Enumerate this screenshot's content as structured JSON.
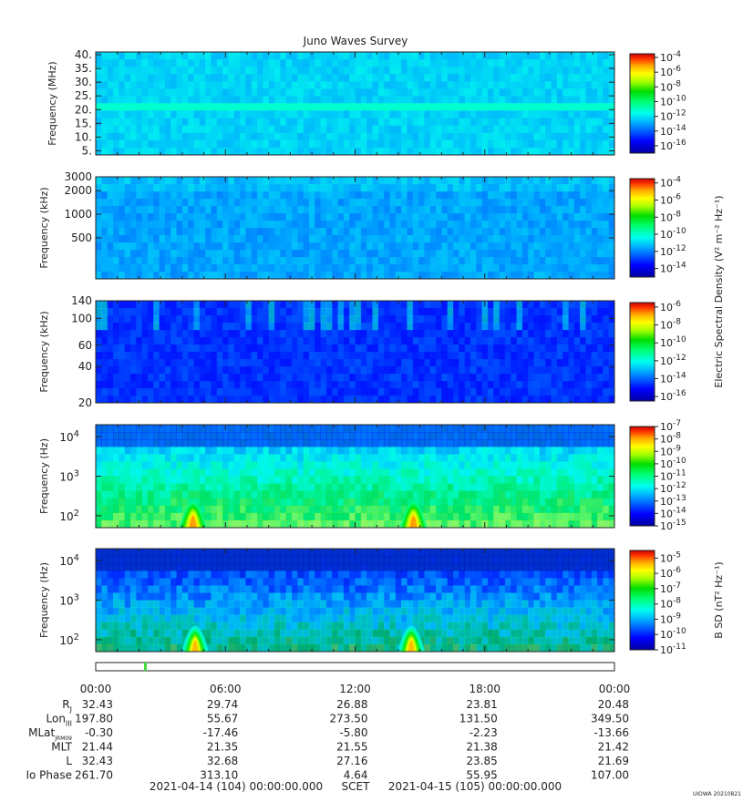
{
  "title": "Juno Waves Survey",
  "credit": "UIOWA 20210821",
  "colors": {
    "background": "#ffffff",
    "text": "#222222",
    "axis": "#222222",
    "marker": "#44dd44"
  },
  "chart_data": [
    {
      "type": "heatmap",
      "name": "panel-hfr-high",
      "ylabel": "Frequency (MHz)",
      "y_ticks": [
        "40.",
        "35.",
        "30.",
        "25.",
        "20.",
        "15.",
        "10.",
        "5."
      ],
      "yscale": "linear",
      "ylim": [
        3.5,
        41
      ],
      "colorbar_ticks": [
        {
          "base": "10",
          "exp": "-4"
        },
        {
          "base": "10",
          "exp": "-6"
        },
        {
          "base": "10",
          "exp": "-8"
        },
        {
          "base": "10",
          "exp": "-10"
        },
        {
          "base": "10",
          "exp": "-12"
        },
        {
          "base": "10",
          "exp": "-14"
        },
        {
          "base": "10",
          "exp": "-16"
        }
      ],
      "colorbar_range_log10": [
        -17,
        -3.5
      ],
      "colorbar_label": "",
      "features": [
        {
          "kind": "band",
          "y": 21,
          "level": -11.2,
          "note": "narrow green band near 21 MHz"
        }
      ],
      "base_level": -12.3
    },
    {
      "type": "heatmap",
      "name": "panel-hfr-low",
      "ylabel": "Frequency (kHz)",
      "y_ticks": [
        "3000",
        "2000",
        "1000",
        "500"
      ],
      "yscale": "log",
      "ylim": [
        150,
        3000
      ],
      "colorbar_ticks": [
        {
          "base": "10",
          "exp": "-4"
        },
        {
          "base": "10",
          "exp": "-6"
        },
        {
          "base": "10",
          "exp": "-8"
        },
        {
          "base": "10",
          "exp": "-10"
        },
        {
          "base": "10",
          "exp": "-12"
        },
        {
          "base": "10",
          "exp": "-14"
        }
      ],
      "colorbar_range_log10": [
        -15,
        -3.5
      ],
      "colorbar_label": "Electric Spectral Density (V² m⁻² Hz⁻¹)",
      "base_level": -11.6
    },
    {
      "type": "heatmap",
      "name": "panel-lfr-high",
      "ylabel": "Frequency (kHz)",
      "y_ticks": [
        "140",
        "100",
        "60",
        "40",
        "20"
      ],
      "yscale": "log",
      "ylim": [
        20,
        140
      ],
      "colorbar_ticks": [
        {
          "base": "10",
          "exp": "-6"
        },
        {
          "base": "10",
          "exp": "-8"
        },
        {
          "base": "10",
          "exp": "-10"
        },
        {
          "base": "10",
          "exp": "-12"
        },
        {
          "base": "10",
          "exp": "-14"
        },
        {
          "base": "10",
          "exp": "-16"
        }
      ],
      "colorbar_range_log10": [
        -16.5,
        -5.5
      ],
      "colorbar_label": "",
      "base_level": -14.6
    },
    {
      "type": "heatmap",
      "name": "panel-lfr-low",
      "ylabel": "Frequency (Hz)",
      "y_ticks": [
        {
          "base": "10",
          "exp": "4"
        },
        {
          "base": "10",
          "exp": "3"
        },
        {
          "base": "10",
          "exp": "2"
        }
      ],
      "yscale": "log",
      "ylim": [
        50,
        20000
      ],
      "colorbar_ticks": [
        {
          "base": "10",
          "exp": "-7"
        },
        {
          "base": "10",
          "exp": "-8"
        },
        {
          "base": "10",
          "exp": "-9"
        },
        {
          "base": "10",
          "exp": "-10"
        },
        {
          "base": "10",
          "exp": "-11"
        },
        {
          "base": "10",
          "exp": "-12"
        },
        {
          "base": "10",
          "exp": "-13"
        },
        {
          "base": "10",
          "exp": "-14"
        },
        {
          "base": "10",
          "exp": "-15"
        }
      ],
      "colorbar_range_log10": [
        -15,
        -7
      ],
      "colorbar_label": "",
      "bursts_hours": [
        4.5,
        14.7
      ],
      "base_level": -12
    },
    {
      "type": "heatmap",
      "name": "panel-magnetic",
      "ylabel": "Frequency (Hz)",
      "y_ticks": [
        {
          "base": "10",
          "exp": "4"
        },
        {
          "base": "10",
          "exp": "3"
        },
        {
          "base": "10",
          "exp": "2"
        }
      ],
      "yscale": "log",
      "ylim": [
        50,
        20000
      ],
      "colorbar_ticks": [
        {
          "base": "10",
          "exp": "-5"
        },
        {
          "base": "10",
          "exp": "-6"
        },
        {
          "base": "10",
          "exp": "-7"
        },
        {
          "base": "10",
          "exp": "-8"
        },
        {
          "base": "10",
          "exp": "-9"
        },
        {
          "base": "10",
          "exp": "-10"
        },
        {
          "base": "10",
          "exp": "-11"
        }
      ],
      "colorbar_range_log10": [
        -11,
        -4.5
      ],
      "colorbar_label": "B SD (nT² Hz⁻¹)",
      "bursts_hours": [
        4.6,
        14.6
      ],
      "base_level": -9.5
    }
  ],
  "time_axis": {
    "labels": [
      "00:00",
      "06:00",
      "12:00",
      "18:00",
      "00:00"
    ],
    "hours": [
      0,
      6,
      12,
      18,
      24
    ],
    "xlim_hours": [
      0,
      24
    ],
    "marker_hour": 2.3
  },
  "ephemeris": [
    {
      "label": "R",
      "sub": "J",
      "values": [
        "32.43",
        "29.74",
        "26.88",
        "23.81",
        "20.48"
      ]
    },
    {
      "label": "Lon",
      "sub": "III",
      "values": [
        "197.80",
        "55.67",
        "273.50",
        "131.50",
        "349.50"
      ]
    },
    {
      "label": "MLat",
      "sub": "JRM09",
      "values": [
        "-0.30",
        "-17.46",
        "-5.80",
        "-2.23",
        "-13.66"
      ]
    },
    {
      "label": "MLT",
      "sub": "",
      "values": [
        "21.44",
        "21.35",
        "21.55",
        "21.38",
        "21.42"
      ]
    },
    {
      "label": "L",
      "sub": "",
      "values": [
        "32.43",
        "32.68",
        "27.16",
        "23.85",
        "21.69"
      ]
    },
    {
      "label": "Io Phase",
      "sub": "",
      "values": [
        "261.70",
        "313.10",
        "4.64",
        "55.95",
        "107.00"
      ]
    }
  ],
  "footer": {
    "start": "2021-04-14 (104) 00:00:00.000",
    "scet": "SCET",
    "end": "2021-04-15 (105) 00:00:00.000"
  }
}
